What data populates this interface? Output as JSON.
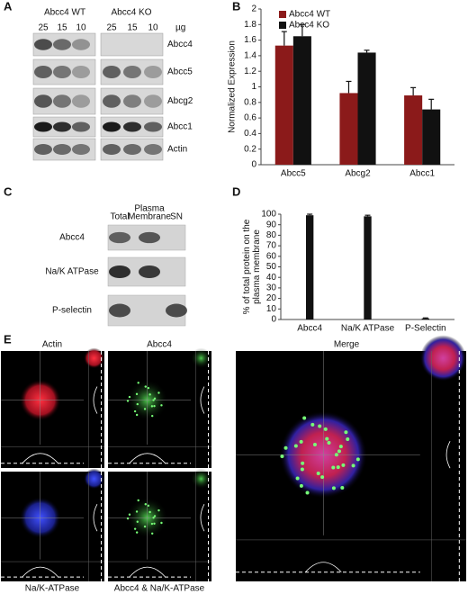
{
  "panels": {
    "a": {
      "label": "A",
      "groups": [
        "Abcc4 WT",
        "Abcc4 KO"
      ],
      "lanes": [
        "25",
        "15",
        "10",
        "25",
        "15",
        "10"
      ],
      "unit": "µg",
      "proteins": [
        "Abcc4",
        "Abcc5",
        "Abcg2",
        "Abcc1",
        "Actin"
      ]
    },
    "b": {
      "label": "B"
    },
    "c": {
      "label": "C",
      "columns": [
        [
          "Total"
        ],
        [
          "Plasma",
          "Membrane"
        ],
        [
          "SN"
        ]
      ],
      "proteins": [
        "Abcc4",
        "Na/K ATPase",
        "P-selectin"
      ]
    },
    "d": {
      "label": "D"
    },
    "e": {
      "label": "E",
      "headers": [
        "Actin",
        "Abcc4",
        "Merge"
      ],
      "footers": [
        "Na/K-ATPase",
        "Abcc4 & Na/K-ATPase"
      ]
    }
  },
  "chart_data": [
    {
      "type": "bar",
      "ylabel": [
        "Normalized Expression"
      ],
      "categories": [
        "Abcc5",
        "Abcg2",
        "Abcc1"
      ],
      "series": [
        {
          "name": "Abcc4 WT",
          "color": "#8b1a1a",
          "values": [
            1.53,
            0.92,
            0.89
          ],
          "errors": [
            0.18,
            0.15,
            0.1
          ]
        },
        {
          "name": "Abcc4 KO",
          "color": "#111111",
          "values": [
            1.65,
            1.44,
            0.71
          ],
          "errors": [
            0.15,
            0.03,
            0.13
          ]
        }
      ],
      "ylim": [
        0,
        2
      ],
      "yticks": [
        0,
        0.2,
        0.4,
        0.6,
        0.8,
        1,
        1.2,
        1.4,
        1.6,
        1.8,
        2
      ],
      "legend": "upper left"
    },
    {
      "type": "bar",
      "ylabel": [
        "% of total protein on the",
        "plasma membrane"
      ],
      "categories": [
        "Abcc4",
        "Na/K ATPase",
        "P-Selectin"
      ],
      "series": [
        {
          "color": "#111111",
          "values": [
            99,
            98,
            1
          ],
          "errors": [
            1,
            1,
            0.5
          ]
        }
      ],
      "ylim": [
        0,
        100
      ],
      "yticks": [
        0,
        10,
        20,
        30,
        40,
        50,
        60,
        70,
        80,
        90,
        100
      ]
    }
  ]
}
